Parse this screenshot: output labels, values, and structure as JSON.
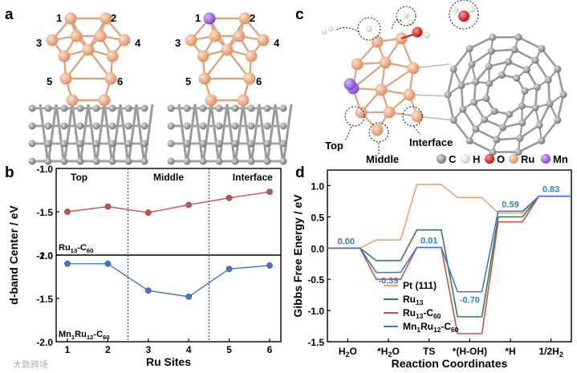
{
  "panels": {
    "a": "a",
    "b": "b",
    "c": "c",
    "d": "d"
  },
  "panel_a": {
    "left_site_labels": [
      "1",
      "2",
      "3",
      "4",
      "5",
      "6"
    ],
    "right_site_labels": [
      "1",
      "2",
      "3",
      "4",
      "5",
      "6"
    ]
  },
  "panel_c": {
    "labels": {
      "top": "Top",
      "middle": "Middle",
      "interface": "Interface"
    },
    "legend": [
      {
        "symbol": "C",
        "color": "#8c8c8c"
      },
      {
        "symbol": "H",
        "color": "#eef0e0"
      },
      {
        "symbol": "O",
        "color": "#e01818"
      },
      {
        "symbol": "Ru",
        "color": "#e8a882"
      },
      {
        "symbol": "Mn",
        "color": "#9a5fd6"
      }
    ]
  },
  "chart_data": [
    {
      "type": "line",
      "panel": "b",
      "ylabel": "d-band Center / eV",
      "xlabel": "Ru Sites",
      "categories": [
        "1",
        "2",
        "3",
        "4",
        "5",
        "6"
      ],
      "region_labels": [
        "Top",
        "Middle",
        "Interface"
      ],
      "series": [
        {
          "name": "Ru13-C60",
          "label_main": "Ru",
          "label_sub1": "13",
          "label_mid": "-C",
          "label_sub2": "60",
          "color": "#c9504a",
          "values": [
            -1.5,
            -1.44,
            -1.51,
            -1.42,
            -1.34,
            -1.27
          ],
          "ylim": [
            -2.0,
            -1.0
          ],
          "yticks": [
            "-1.0",
            "-1.5",
            "-2.0"
          ]
        },
        {
          "name": "Mn1Ru12-C60",
          "label_main": "Mn",
          "label_sub1": "1",
          "label_mid": "Ru",
          "label_sub2": "12",
          "label_end": "-C",
          "label_sub3": "60",
          "color": "#3a78d4",
          "values": [
            -1.1,
            -1.1,
            -1.41,
            -1.48,
            -1.16,
            -1.12
          ],
          "ylim": [
            -2.0,
            -1.0
          ],
          "yticks": [
            "-1.0",
            "-1.5",
            "-2.0"
          ]
        }
      ]
    },
    {
      "type": "line",
      "panel": "d",
      "subtype": "free-energy-steps",
      "ylabel": "Gibbs Free Energy / eV",
      "xlabel": "Reaction Coordinates",
      "ylim": [
        -1.5,
        1.25
      ],
      "yticks": [
        "1.0",
        "0.5",
        "0.0",
        "-0.5",
        "-1.0",
        "-1.5"
      ],
      "categories": [
        {
          "main": "H",
          "sub": "2",
          "end": "O"
        },
        {
          "main": "*H",
          "sub": "2",
          "end": "O"
        },
        {
          "main": "TS",
          "sub": "",
          "end": ""
        },
        {
          "main": "*(H-OH)",
          "sub": "",
          "end": ""
        },
        {
          "main": "*H",
          "sub": "",
          "end": ""
        },
        {
          "main": "1/2H",
          "sub": "2",
          "end": ""
        }
      ],
      "series": [
        {
          "name": "Pt (111)",
          "label_main": "Pt (111)",
          "color": "#f0a068",
          "values": [
            0.0,
            0.13,
            1.02,
            0.81,
            0.56,
            0.83
          ]
        },
        {
          "name": "Ru13",
          "label_main": "Ru",
          "label_sub1": "13",
          "color": "#3a7d4a",
          "values": [
            0.0,
            -0.2,
            0.29,
            -1.1,
            0.5,
            0.83
          ]
        },
        {
          "name": "Ru13-C60",
          "label_main": "Ru",
          "label_sub1": "13",
          "label_mid": "-C",
          "label_sub2": "60",
          "color": "#c9504a",
          "values": [
            0.0,
            -0.5,
            0.01,
            -1.37,
            0.42,
            0.83
          ]
        },
        {
          "name": "Mn1Ru12-C60",
          "label_main": "Mn",
          "label_sub1": "1",
          "label_mid": "Ru",
          "label_sub2": "12",
          "label_end": "-C",
          "label_sub3": "60",
          "color": "#3a78d4",
          "values": [
            0.0,
            -0.39,
            0.01,
            -0.7,
            0.59,
            0.83
          ]
        }
      ],
      "annotations": [
        {
          "text": "0.00",
          "category": 0,
          "value": 0.0
        },
        {
          "text": "-0.39",
          "category": 1,
          "value": -0.39
        },
        {
          "text": "0.01",
          "category": 2,
          "value": 0.01
        },
        {
          "text": "-0.70",
          "category": 3,
          "value": -0.7
        },
        {
          "text": "0.59",
          "category": 4,
          "value": 0.59
        },
        {
          "text": "0.83",
          "category": 5,
          "value": 0.83
        }
      ],
      "annotation_color": "#3a78d4"
    }
  ],
  "watermark": "大数跨境"
}
